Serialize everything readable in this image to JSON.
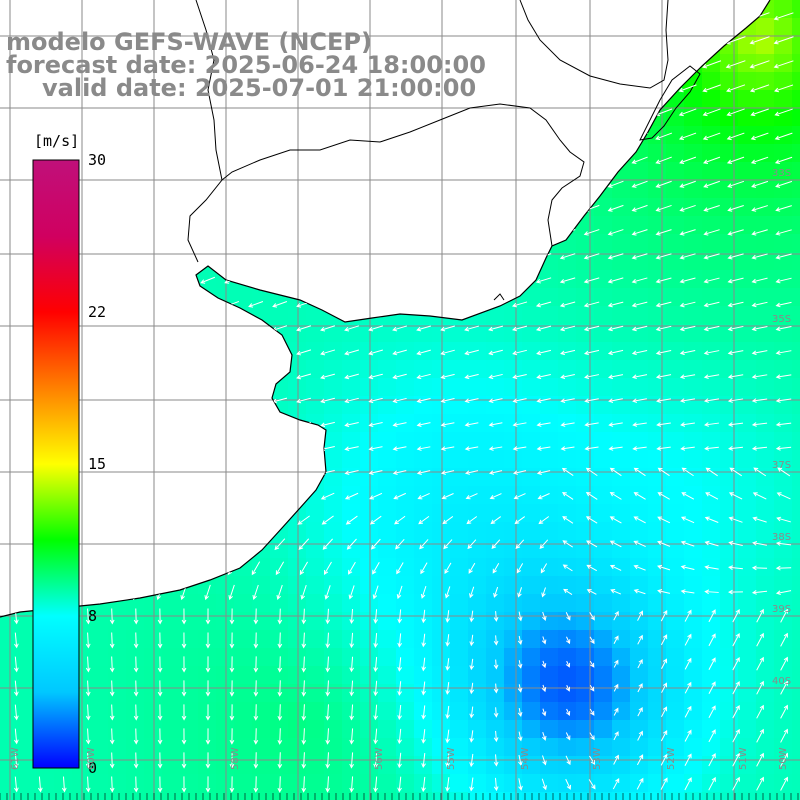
{
  "title": {
    "line1": "modelo GEFS-WAVE (NCEP)",
    "line2": "forecast date: 2025-06-24 18:00:00",
    "line3": "valid date: 2025-07-01 21:00:00"
  },
  "colorbar": {
    "unit": "[m/s]",
    "ticks": [
      "30",
      "22",
      "15",
      "8",
      "0"
    ],
    "stops": [
      "#0000ff",
      "#00c8ff",
      "#00ffff",
      "#00ff00",
      "#ffff00",
      "#ff8000",
      "#ff0000",
      "#d00060",
      "#c0107a"
    ]
  },
  "lat_labels": [
    "33S",
    "35S",
    "37S",
    "38S",
    "39S",
    "40S"
  ],
  "lon_labels": [
    "61W",
    "60W",
    "58W",
    "56W",
    "55W",
    "54W",
    "53W",
    "52W",
    "51W",
    "50W"
  ],
  "colors": {
    "land": "#ffffff",
    "grid": "#8a8a8a",
    "coast": "#000000",
    "arrow": "#ffffff"
  },
  "chart_data": {
    "type": "heatmap",
    "variable": "wind speed",
    "unit": "m/s",
    "range": [
      0,
      30
    ],
    "ticks": [
      0,
      8,
      15,
      22,
      30
    ]
  }
}
